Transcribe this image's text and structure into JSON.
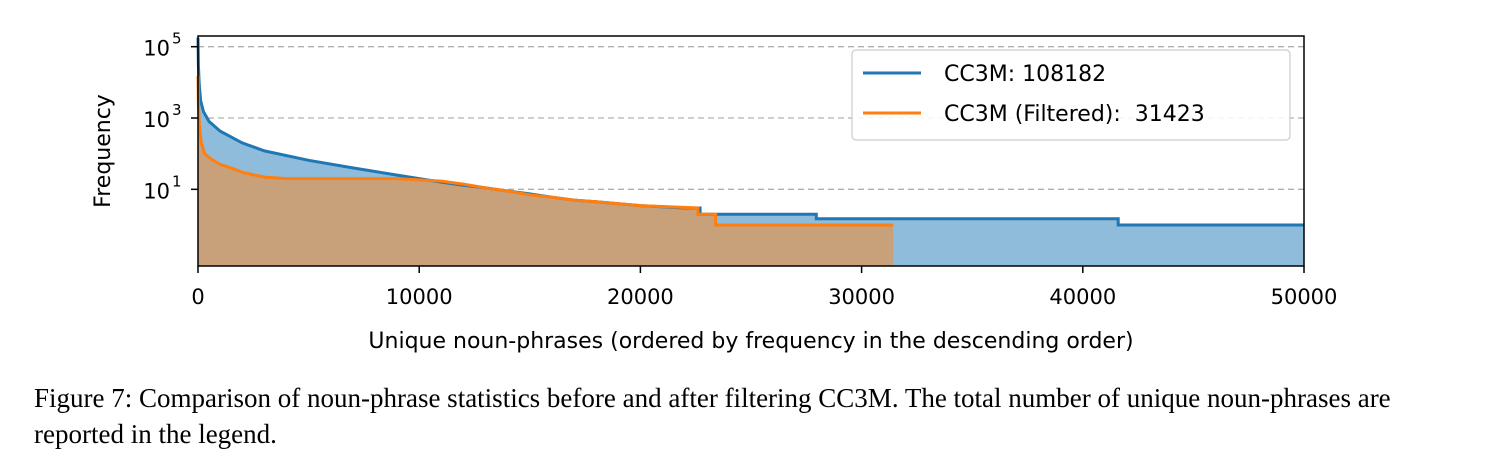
{
  "chart_data": {
    "type": "area",
    "title": "",
    "xlabel": "Unique noun-phrases (ordered by frequency in the descending order)",
    "ylabel": "Frequency",
    "xlim": [
      0,
      50000
    ],
    "ylog": true,
    "ylim_log10": [
      -1.15,
      5.3
    ],
    "grid": "horizontal-dashed",
    "x_ticks": [
      0,
      10000,
      20000,
      30000,
      40000,
      50000
    ],
    "x_tick_labels": [
      "0",
      "10000",
      "20000",
      "30000",
      "40000",
      "50000"
    ],
    "y_ticks": [
      {
        "base": "10",
        "exp": "1",
        "value": 10
      },
      {
        "base": "10",
        "exp": "3",
        "value": 1000
      },
      {
        "base": "10",
        "exp": "5",
        "value": 100000
      }
    ],
    "legend_position": "upper-right",
    "series": [
      {
        "name": "CC3M: 108182",
        "color": "#1f77b4",
        "fill": "#8fbcdb",
        "x": [
          0,
          20,
          60,
          120,
          250,
          500,
          1000,
          2000,
          3000,
          5000,
          7000,
          9000,
          10000,
          11000,
          12000,
          12500,
          13000,
          14000,
          15000,
          16000,
          17000,
          18000,
          20000,
          22000,
          22700,
          22700,
          27950,
          27950,
          41600,
          41600,
          50000
        ],
        "y": [
          180000,
          30000,
          8000,
          3000,
          1500,
          800,
          430,
          200,
          120,
          65,
          40,
          25,
          20,
          16,
          13,
          12,
          11,
          9,
          7.5,
          6,
          5,
          4.5,
          3.5,
          3,
          3,
          2,
          2,
          1.5,
          1.5,
          1,
          1
        ]
      },
      {
        "name": "CC3M (Filtered):  31423",
        "color": "#ff7f0e",
        "fill": "#c8a07a",
        "x": [
          0,
          20,
          60,
          150,
          300,
          600,
          1000,
          1500,
          2000,
          3000,
          4000,
          9000,
          11000,
          12000,
          13000,
          14000,
          15000,
          16000,
          17000,
          18000,
          20000,
          22600,
          22600,
          23400,
          23400,
          31423
        ],
        "y": [
          15000,
          2500,
          700,
          200,
          100,
          70,
          50,
          40,
          30,
          22,
          20,
          20,
          17,
          14,
          11,
          9,
          7,
          6,
          5,
          4.5,
          3.5,
          3,
          2,
          2,
          1,
          1
        ]
      }
    ]
  },
  "caption": "Figure 7: Comparison of noun-phrase statistics before and after filtering CC3M. The total number of unique noun-phrases are reported in the legend."
}
